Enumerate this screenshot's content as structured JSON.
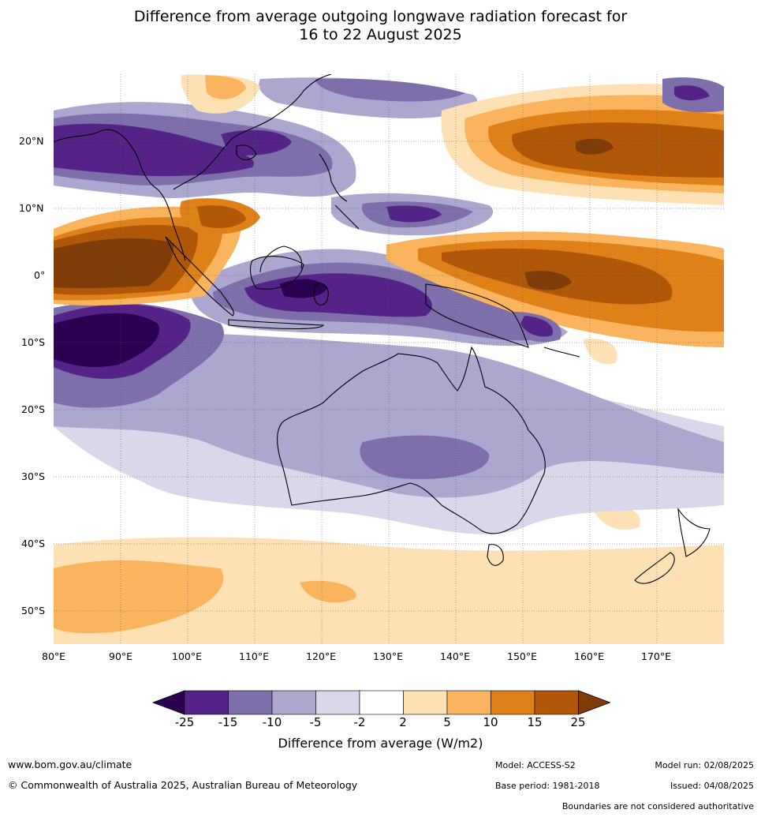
{
  "title_line1": "Difference from average outgoing longwave radiation forecast for",
  "title_line2": "16 to 22 August 2025",
  "lat_labels": [
    "20°N",
    "10°N",
    "0°",
    "10°S",
    "20°S",
    "30°S",
    "40°S",
    "50°S"
  ],
  "lon_labels": [
    "80°E",
    "90°E",
    "100°E",
    "110°E",
    "120°E",
    "130°E",
    "140°E",
    "150°E",
    "160°E",
    "170°E"
  ],
  "colorbar": {
    "ticks": [
      "-25",
      "-15",
      "-10",
      "-5",
      "-2",
      "2",
      "5",
      "10",
      "15",
      "25"
    ],
    "colors": [
      "#2c0050",
      "#552288",
      "#7e6eaa",
      "#ada7cf",
      "#d8d8ea",
      "#ffffff",
      "#fde0b4",
      "#fbb45e",
      "#e08018",
      "#b05808",
      "#7f3b08"
    ],
    "label": "Difference from average (W/m2)"
  },
  "footer": {
    "url": "www.bom.gov.au/climate",
    "copyright": "© Commonwealth of Australia 2025, Australian Bureau of Meteorology",
    "model": "Model: ACCESS-S2",
    "model_run": "Model run: 02/08/2025",
    "base_period": "Base period: 1981-2018",
    "issued": "Issued: 04/08/2025",
    "disclaimer": "Boundaries are not considered authoritative"
  }
}
